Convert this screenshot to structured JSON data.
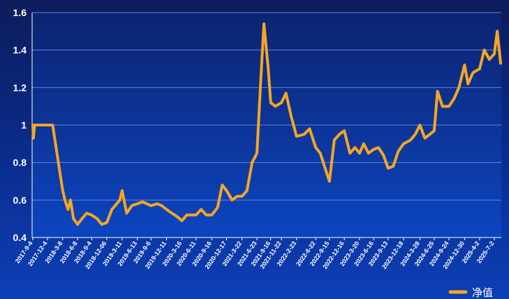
{
  "chart_data": {
    "type": "line",
    "title": "",
    "xlabel": "",
    "ylabel": "",
    "ylim": [
      0.4,
      1.6
    ],
    "y_ticks": [
      0.4,
      0.6,
      0.8,
      1,
      1.2,
      1.4,
      1.6
    ],
    "y_tick_labels": [
      "0.4",
      "0.6",
      "0.8",
      "1",
      "1.2",
      "1.4",
      "1.6"
    ],
    "x_tick_labels": [
      "2017-9-4",
      "2017-12-4",
      "2018-3-8",
      "2018-6-8",
      "2018-9-4",
      "2018-12-06",
      "2019-3-11",
      "2019-6-13",
      "2019-9-6",
      "2019-12-11",
      "2020-3-16",
      "2020-6-11",
      "2020-9-16",
      "2020-12-17",
      "2021-3-22",
      "2021-6-23",
      "2021-9-16",
      "2021-11-22",
      "2022-2-23",
      "2022-6-22",
      "2022-9-15",
      "2022-12-16",
      "2023-3-20",
      "2023-6-16",
      "2023-9-13",
      "2023-12-18",
      "2024-3-28",
      "2024-6-25",
      "2024-9-24",
      "2024-12-30",
      "2025-4-2",
      "2025-7-2"
    ],
    "grid": true,
    "legend_position": "bottom-right",
    "series": [
      {
        "name": "净值",
        "color": "#f5a623",
        "x": [
          "2017-9-4",
          "2017-9-8",
          "2017-9-15",
          "2017-10-9",
          "2017-12-4",
          "2018-1-5",
          "2018-3-8",
          "2018-3-22",
          "2018-4-10",
          "2018-4-25",
          "2018-5-14",
          "2018-6-8",
          "2018-7-5",
          "2018-8-3",
          "2018-9-4",
          "2018-10-8",
          "2018-11-5",
          "2018-12-06",
          "2019-1-7",
          "2019-2-25",
          "2019-3-11",
          "2019-4-8",
          "2019-5-10",
          "2019-6-13",
          "2019-7-15",
          "2019-8-12",
          "2019-9-6",
          "2019-10-14",
          "2019-11-11",
          "2019-12-11",
          "2020-1-13",
          "2020-2-17",
          "2020-3-16",
          "2020-4-14",
          "2020-5-12",
          "2020-6-11",
          "2020-7-13",
          "2020-8-13",
          "2020-9-16",
          "2020-10-22",
          "2020-11-20",
          "2020-12-17",
          "2021-1-20",
          "2021-2-20",
          "2021-3-22",
          "2021-4-22",
          "2021-5-24",
          "2021-6-23",
          "2021-7-14",
          "2021-8-5",
          "2021-9-1",
          "2021-9-16",
          "2021-10-15",
          "2021-11-22",
          "2021-12-20",
          "2022-1-20",
          "2022-2-23",
          "2022-4-10",
          "2022-5-15",
          "2022-6-22",
          "2022-7-20",
          "2022-8-15",
          "2022-9-15",
          "2022-10-15",
          "2022-11-15",
          "2022-12-16",
          "2023-1-20",
          "2023-2-20",
          "2023-3-20",
          "2023-4-15",
          "2023-5-15",
          "2023-6-16",
          "2023-7-15",
          "2023-8-15",
          "2023-9-13",
          "2023-10-15",
          "2023-11-15",
          "2023-12-18",
          "2024-1-30",
          "2024-2-28",
          "2024-3-28",
          "2024-4-28",
          "2024-5-28",
          "2024-6-25",
          "2024-7-15",
          "2024-8-15",
          "2024-9-24",
          "2024-10-25",
          "2024-11-25",
          "2024-12-30",
          "2025-1-20",
          "2025-2-20",
          "2025-4-2",
          "2025-5-1",
          "2025-6-1",
          "2025-7-2",
          "2025-7-20",
          "2025-8-10"
        ],
        "values": [
          1.0,
          0.93,
          1.0,
          1.0,
          1.0,
          1.0,
          0.65,
          0.6,
          0.55,
          0.6,
          0.5,
          0.47,
          0.5,
          0.53,
          0.52,
          0.5,
          0.47,
          0.48,
          0.55,
          0.6,
          0.65,
          0.53,
          0.57,
          0.58,
          0.59,
          0.58,
          0.57,
          0.58,
          0.57,
          0.55,
          0.53,
          0.51,
          0.49,
          0.52,
          0.52,
          0.52,
          0.55,
          0.52,
          0.52,
          0.56,
          0.68,
          0.65,
          0.6,
          0.62,
          0.62,
          0.65,
          0.8,
          0.85,
          1.2,
          1.54,
          1.3,
          1.12,
          1.1,
          1.12,
          1.17,
          1.05,
          0.94,
          0.95,
          0.98,
          0.88,
          0.85,
          0.78,
          0.7,
          0.92,
          0.95,
          0.97,
          0.85,
          0.88,
          0.85,
          0.9,
          0.85,
          0.87,
          0.88,
          0.84,
          0.77,
          0.78,
          0.86,
          0.9,
          0.92,
          0.95,
          1.0,
          0.93,
          0.95,
          0.97,
          1.18,
          1.1,
          1.1,
          1.14,
          1.2,
          1.32,
          1.22,
          1.28,
          1.3,
          1.4,
          1.35,
          1.38,
          1.5,
          1.33
        ]
      }
    ]
  }
}
